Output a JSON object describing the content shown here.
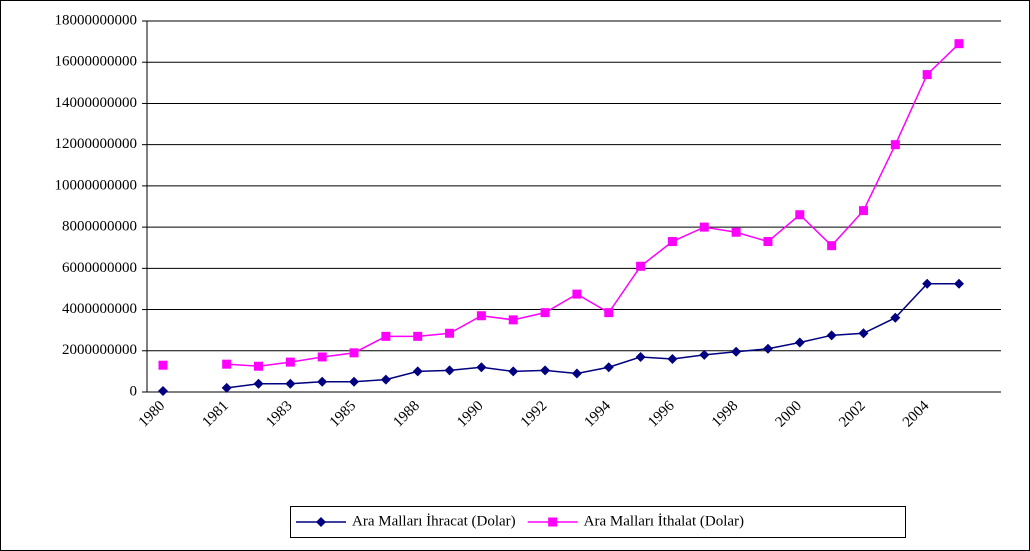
{
  "chart_data": {
    "type": "line",
    "categories": [
      "1980",
      null,
      "1981",
      null,
      "1983",
      null,
      "1985",
      null,
      "1988",
      null,
      "1990",
      null,
      "1992",
      null,
      "1994",
      null,
      "1996",
      null,
      "1998",
      null,
      "2000",
      null,
      "2002",
      null,
      "2004",
      null
    ],
    "series": [
      {
        "name": "Ara Malları İhracat (Dolar)",
        "color": "#000080",
        "marker": "diamond",
        "values": [
          50000000,
          null,
          200000000,
          400000000,
          400000000,
          500000000,
          500000000,
          600000000,
          1000000000,
          1050000000,
          1200000000,
          1000000000,
          1050000000,
          900000000,
          1200000000,
          1700000000,
          1600000000,
          1800000000,
          1950000000,
          2100000000,
          2400000000,
          2750000000,
          2850000000,
          3600000000,
          5250000000,
          5250000000
        ]
      },
      {
        "name": "Ara Malları İthalat (Dolar)",
        "color": "#ff00ff",
        "marker": "square",
        "values": [
          1300000000,
          null,
          1350000000,
          1250000000,
          1450000000,
          1700000000,
          1900000000,
          2700000000,
          2700000000,
          2850000000,
          3700000000,
          3500000000,
          3850000000,
          4750000000,
          3850000000,
          6100000000,
          7300000000,
          8000000000,
          7750000000,
          7300000000,
          8600000000,
          7100000000,
          8800000000,
          12000000000,
          15400000000,
          16900000000
        ]
      }
    ],
    "ylim": [
      0,
      18000000000
    ],
    "yticks": [
      0,
      2000000000,
      4000000000,
      6000000000,
      8000000000,
      10000000000,
      12000000000,
      14000000000,
      16000000000,
      18000000000
    ],
    "grid": true,
    "legend": "bottom"
  }
}
